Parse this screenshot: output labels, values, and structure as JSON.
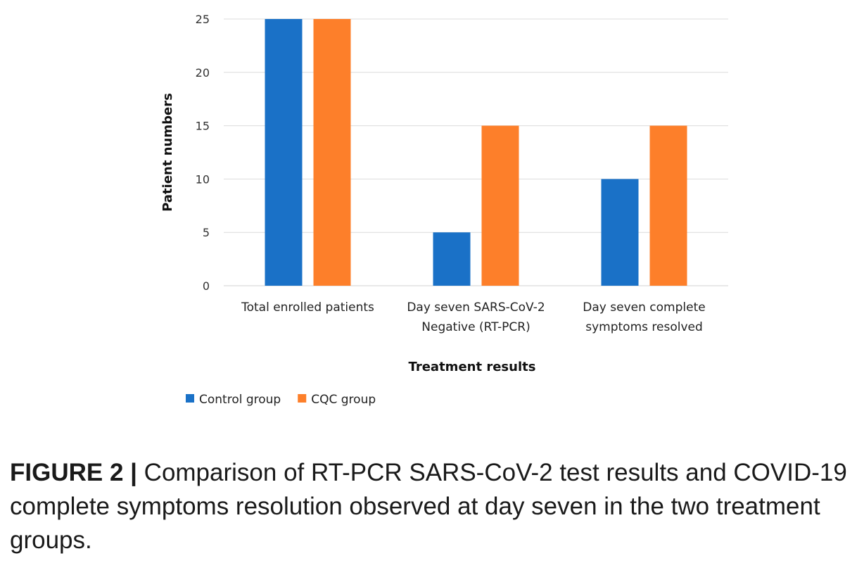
{
  "chart_data": {
    "type": "bar",
    "categories": [
      [
        "Total enrolled patients"
      ],
      [
        "Day seven SARS-CoV-2",
        "Negative (RT-PCR)"
      ],
      [
        "Day seven complete",
        "symptoms resolved"
      ]
    ],
    "series": [
      {
        "name": "Control group",
        "values": [
          25,
          5,
          10
        ],
        "color": "#1a71c7"
      },
      {
        "name": "CQC group",
        "values": [
          25,
          15,
          15
        ],
        "color": "#fd7f2a"
      }
    ],
    "xlabel": "Treatment results",
    "ylabel": "Patient numbers",
    "ylim": [
      0,
      25
    ],
    "yticks": [
      0,
      5,
      10,
      15,
      20,
      25
    ],
    "grid": true,
    "legend_position": "bottom-left"
  },
  "caption": {
    "label": "FIGURE 2 |",
    "text": " Comparison of RT-PCR SARS-CoV-2 test results and COVID-19 complete symptoms resolution observed at day seven in the two treatment groups."
  }
}
